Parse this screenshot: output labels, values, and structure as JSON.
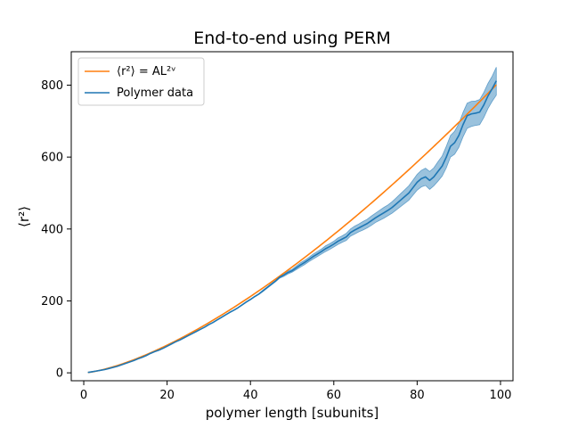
{
  "chart_data": {
    "type": "line",
    "title": "End-to-end using PERM",
    "xlabel": "polymer length [subunits]",
    "ylabel": "⟨r²⟩",
    "xlim": [
      -3,
      103
    ],
    "ylim": [
      -22,
      893
    ],
    "xticks": [
      0,
      20,
      40,
      60,
      80,
      100
    ],
    "yticks": [
      0,
      200,
      400,
      600,
      800
    ],
    "grid": false,
    "legend_position": "top-left",
    "legend": {
      "fit_label": "⟨r²⟩ = AL²ᵛ",
      "data_label": "Polymer data"
    },
    "fit": {
      "name": "⟨r²⟩ = AL²ᵛ",
      "color": "#ff7f0e",
      "A": 0.955,
      "exponent": 1.465,
      "x_range": [
        1,
        99
      ]
    },
    "series": [
      {
        "name": "Polymer data",
        "color": "#1f77b4",
        "band_color": "#1f77b4",
        "x": [
          1,
          2,
          3,
          4,
          5,
          6,
          7,
          8,
          9,
          10,
          11,
          12,
          13,
          14,
          15,
          16,
          17,
          18,
          19,
          20,
          21,
          22,
          23,
          24,
          25,
          26,
          27,
          28,
          29,
          30,
          31,
          32,
          33,
          34,
          35,
          36,
          37,
          38,
          39,
          40,
          41,
          42,
          43,
          44,
          45,
          46,
          47,
          48,
          49,
          50,
          51,
          52,
          53,
          54,
          55,
          56,
          57,
          58,
          59,
          60,
          61,
          62,
          63,
          64,
          65,
          66,
          67,
          68,
          69,
          70,
          71,
          72,
          73,
          74,
          75,
          76,
          77,
          78,
          79,
          80,
          81,
          82,
          83,
          84,
          85,
          86,
          87,
          88,
          89,
          90,
          91,
          92,
          93,
          94,
          95,
          96,
          97,
          98,
          99
        ],
        "y": [
          1,
          3,
          5,
          7,
          9,
          12,
          15,
          18,
          22,
          26,
          30,
          34,
          39,
          43,
          48,
          54,
          59,
          63,
          68,
          74,
          80,
          86,
          91,
          97,
          103,
          109,
          115,
          121,
          127,
          134,
          140,
          147,
          154,
          161,
          168,
          174,
          181,
          189,
          197,
          204,
          212,
          219,
          228,
          237,
          246,
          255,
          266,
          272,
          279,
          284,
          292,
          300,
          307,
          315,
          323,
          330,
          337,
          345,
          351,
          358,
          366,
          372,
          378,
          390,
          397,
          403,
          409,
          415,
          423,
          431,
          438,
          445,
          452,
          460,
          470,
          480,
          490,
          500,
          515,
          530,
          540,
          545,
          535,
          545,
          560,
          575,
          600,
          630,
          640,
          660,
          690,
          715,
          720,
          722,
          725,
          745,
          770,
          790,
          812
        ],
        "lower": [
          1,
          3,
          5,
          7,
          9,
          12,
          15,
          18,
          22,
          26,
          30,
          34,
          39,
          43,
          48,
          54,
          59,
          63,
          68,
          74,
          80,
          86,
          91,
          97,
          103,
          109,
          115,
          121,
          127,
          134,
          140,
          147,
          154,
          161,
          168,
          174,
          181,
          189,
          196,
          203,
          211,
          218,
          226,
          235,
          244,
          253,
          263,
          268,
          275,
          280,
          287,
          294,
          301,
          309,
          316,
          323,
          330,
          337,
          343,
          350,
          357,
          363,
          368,
          380,
          386,
          392,
          397,
          403,
          410,
          418,
          424,
          430,
          437,
          444,
          453,
          462,
          471,
          480,
          494,
          508,
          517,
          521,
          510,
          520,
          533,
          547,
          570,
          600,
          608,
          627,
          656,
          680,
          685,
          688,
          690,
          710,
          735,
          755,
          772
        ],
        "upper": [
          1,
          3,
          5,
          7,
          9,
          12,
          15,
          18,
          22,
          26,
          30,
          34,
          39,
          43,
          48,
          54,
          59,
          63,
          68,
          74,
          80,
          86,
          91,
          97,
          103,
          109,
          115,
          121,
          127,
          134,
          140,
          147,
          154,
          161,
          168,
          174,
          181,
          189,
          198,
          205,
          213,
          220,
          230,
          239,
          248,
          257,
          269,
          276,
          283,
          288,
          297,
          306,
          313,
          321,
          330,
          337,
          344,
          353,
          359,
          366,
          375,
          381,
          388,
          400,
          408,
          414,
          421,
          427,
          436,
          444,
          452,
          460,
          467,
          476,
          487,
          498,
          509,
          520,
          536,
          552,
          563,
          569,
          560,
          570,
          587,
          603,
          630,
          660,
          672,
          693,
          724,
          750,
          755,
          756,
          760,
          780,
          805,
          825,
          850
        ]
      }
    ]
  }
}
